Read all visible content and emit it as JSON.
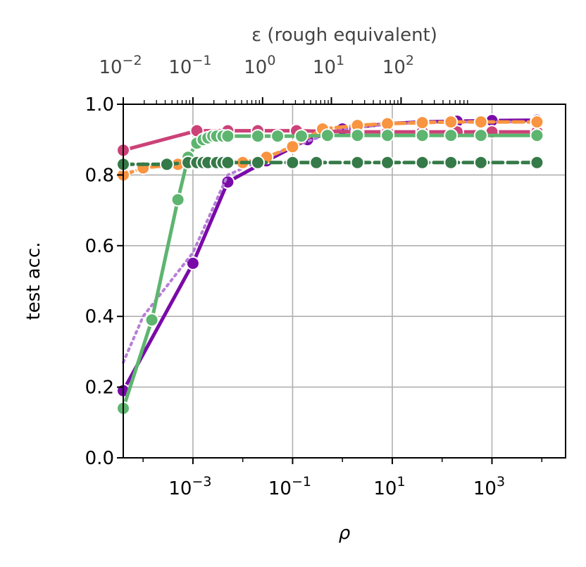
{
  "chart_data": {
    "type": "line",
    "xlabel": "ρ",
    "ylabel": "test acc.",
    "x_scale": "log",
    "xlim": [
      4e-05,
      30000
    ],
    "ylim": [
      0,
      1
    ],
    "yticks": [
      0.0,
      0.2,
      0.4,
      0.6,
      0.8,
      1.0
    ],
    "ytick_labels": [
      "0.0",
      "0.2",
      "0.4",
      "0.6",
      "0.8",
      "1.0"
    ],
    "xticks": [
      {
        "base": "10",
        "exp": "−3",
        "value": 0.001
      },
      {
        "base": "10",
        "exp": "−1",
        "value": 0.1
      },
      {
        "base": "10",
        "exp": "1",
        "value": 10
      },
      {
        "base": "10",
        "exp": "3",
        "value": 1000
      }
    ],
    "top_axis": {
      "label": "ε (rough equivalent)",
      "ticks": [
        {
          "base": "10",
          "exp": "−2",
          "value": 4e-05
        },
        {
          "base": "10",
          "exp": "−1",
          "value": 0.001
        },
        {
          "base": "10",
          "exp": "0",
          "value": 0.025
        },
        {
          "base": "10",
          "exp": "1",
          "value": 0.6
        },
        {
          "base": "10",
          "exp": "2",
          "value": 15
        }
      ]
    },
    "grid": true,
    "series": [
      {
        "color": "#7a0aa8",
        "dash": "solid",
        "marker": true,
        "x": [
          4e-05,
          0.001,
          0.005,
          0.03,
          0.2,
          1,
          8,
          40,
          200,
          1000,
          8000
        ],
        "y": [
          0.19,
          0.55,
          0.78,
          0.84,
          0.9,
          0.93,
          0.945,
          0.95,
          0.952,
          0.954,
          0.955
        ]
      },
      {
        "color": "#b57fd6",
        "dash": "dotted",
        "marker": false,
        "x": [
          4e-05,
          0.0001,
          0.001,
          0.005,
          0.1,
          1,
          10,
          100,
          1000,
          8000
        ],
        "y": [
          0.27,
          0.4,
          0.58,
          0.8,
          0.88,
          0.93,
          0.945,
          0.95,
          0.95,
          0.95
        ]
      },
      {
        "color": "#cc4278",
        "dash": "solid",
        "marker": true,
        "x": [
          4e-05,
          0.0012,
          0.005,
          0.02,
          0.12,
          2,
          8,
          40,
          200,
          1000,
          8000
        ],
        "y": [
          0.87,
          0.925,
          0.925,
          0.925,
          0.925,
          0.922,
          0.922,
          0.922,
          0.922,
          0.922,
          0.922
        ]
      },
      {
        "color": "#f99440",
        "dash": "dashed",
        "marker": true,
        "x": [
          4e-05,
          0.0001,
          0.0005,
          0.001,
          0.002,
          0.003,
          0.005,
          0.01,
          0.03,
          0.1,
          0.4,
          2,
          8,
          40,
          150,
          600,
          8000
        ],
        "y": [
          0.8,
          0.82,
          0.83,
          0.835,
          0.835,
          0.835,
          0.835,
          0.835,
          0.85,
          0.88,
          0.93,
          0.94,
          0.945,
          0.948,
          0.95,
          0.95,
          0.95
        ]
      },
      {
        "color": "#5db56f",
        "dash": "solid",
        "marker": true,
        "x": [
          4e-05,
          0.00015,
          0.0005,
          0.0008,
          0.0012,
          0.0016,
          0.002,
          0.0025,
          0.003,
          0.004,
          0.005,
          0.02,
          0.05,
          0.15,
          0.5,
          2,
          8,
          40,
          150,
          600,
          8000
        ],
        "y": [
          0.14,
          0.39,
          0.73,
          0.85,
          0.89,
          0.9,
          0.905,
          0.91,
          0.91,
          0.91,
          0.91,
          0.91,
          0.91,
          0.91,
          0.912,
          0.912,
          0.912,
          0.912,
          0.912,
          0.912,
          0.912
        ]
      },
      {
        "color": "#357a48",
        "dash": "dashed",
        "marker": true,
        "x": [
          4e-05,
          0.0003,
          0.0008,
          0.0012,
          0.0016,
          0.002,
          0.003,
          0.004,
          0.005,
          0.02,
          0.1,
          0.3,
          2,
          8,
          40,
          150,
          600,
          8000
        ],
        "y": [
          0.83,
          0.83,
          0.835,
          0.835,
          0.835,
          0.835,
          0.835,
          0.835,
          0.835,
          0.835,
          0.835,
          0.835,
          0.835,
          0.835,
          0.835,
          0.835,
          0.835,
          0.835
        ]
      }
    ]
  }
}
